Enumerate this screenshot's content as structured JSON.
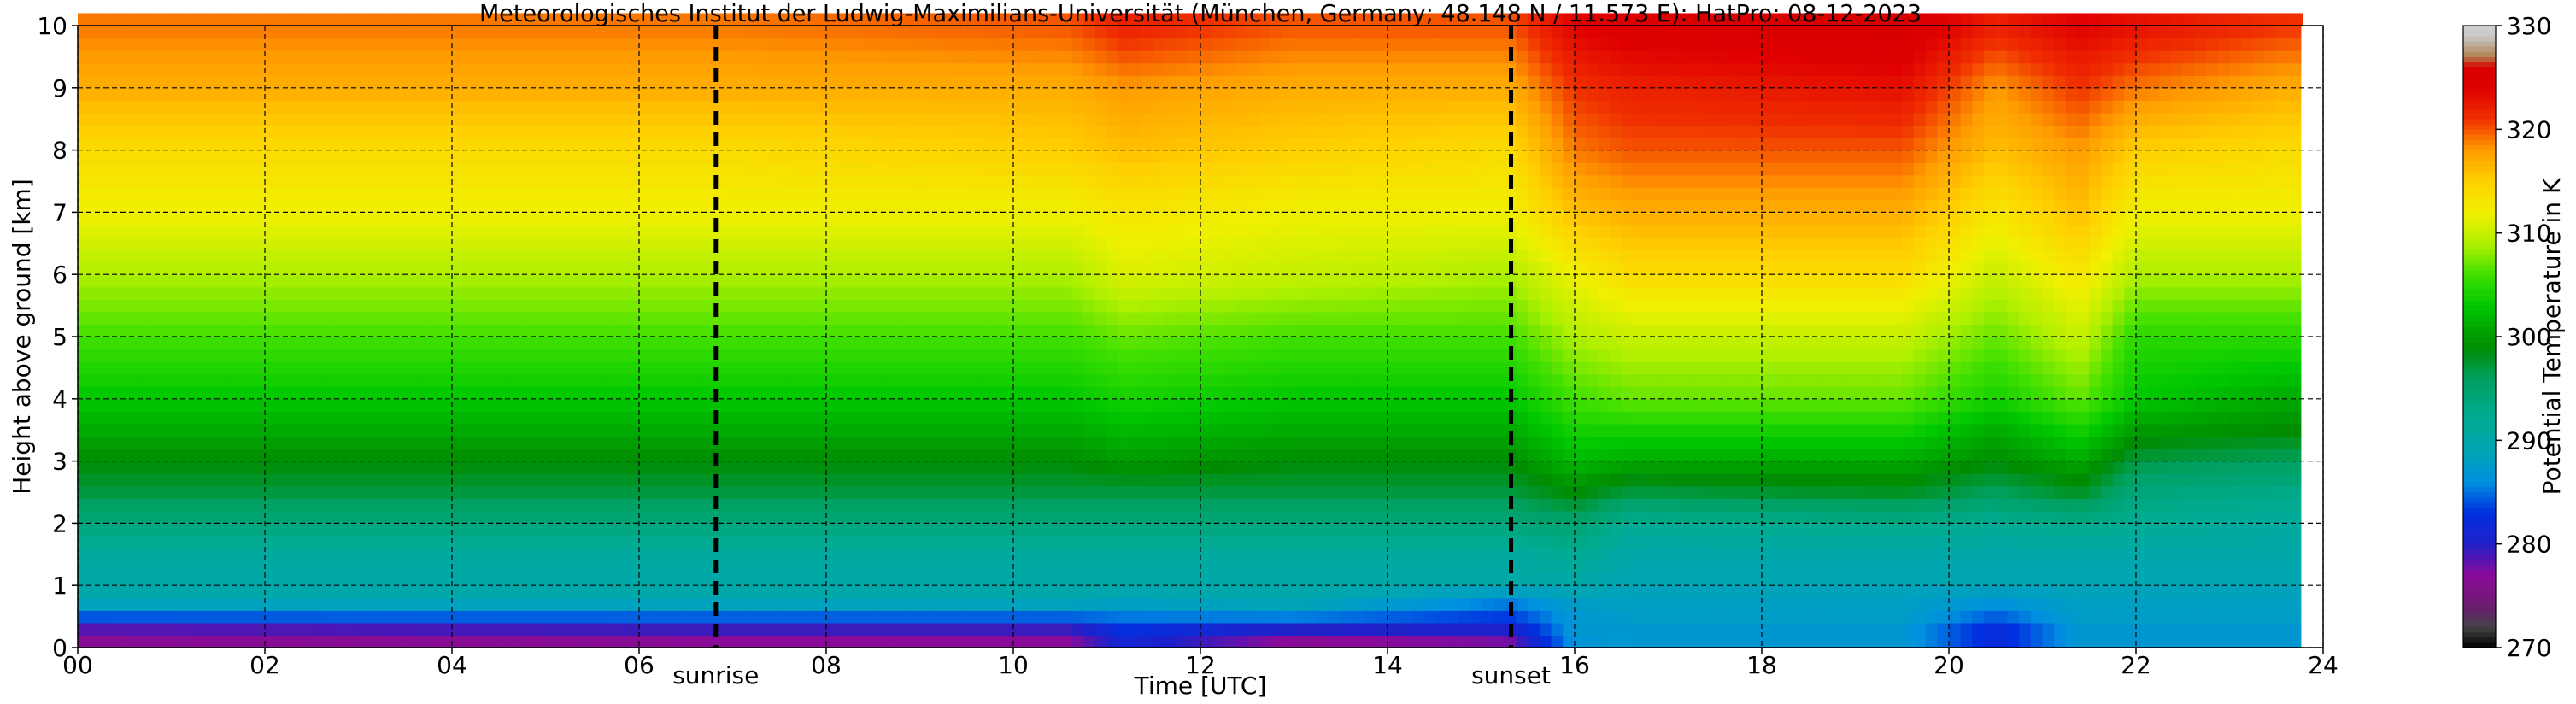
{
  "chart_data": {
    "type": "heatmap",
    "title": "Meteorologisches Institut der Ludwig-Maximilians-Universität (München, Germany; 48.148 N / 11.573 E):    HatPro: 08-12-2023",
    "xlabel": "Time [UTC]",
    "ylabel": "Height above ground [km]",
    "xlim": [
      0,
      24
    ],
    "ylim": [
      0,
      10
    ],
    "x_ticks": [
      0,
      2,
      4,
      6,
      8,
      10,
      12,
      14,
      16,
      18,
      20,
      22,
      24
    ],
    "x_tick_labels": [
      "00",
      "02",
      "04",
      "06",
      "08",
      "10",
      "12",
      "14",
      "16",
      "18",
      "20",
      "22",
      "24"
    ],
    "y_ticks": [
      0,
      1,
      2,
      3,
      4,
      5,
      6,
      7,
      8,
      9,
      10
    ],
    "y_tick_labels": [
      "0",
      "1",
      "2",
      "3",
      "4",
      "5",
      "6",
      "7",
      "8",
      "9",
      "10"
    ],
    "grid": true,
    "colorbar": {
      "label": "Potential Temperature in K",
      "min": 270,
      "max": 330,
      "ticks": [
        270,
        280,
        290,
        300,
        310,
        320,
        330
      ],
      "tick_labels": [
        "270",
        "280",
        "290",
        "300",
        "310",
        "320",
        "330"
      ]
    },
    "colormap": [
      {
        "value": 270,
        "color": "#000000"
      },
      {
        "value": 272,
        "color": "#444444"
      },
      {
        "value": 274,
        "color": "#6b1c70"
      },
      {
        "value": 277,
        "color": "#8c0a99"
      },
      {
        "value": 280,
        "color": "#2020c8"
      },
      {
        "value": 283,
        "color": "#0030e0"
      },
      {
        "value": 286,
        "color": "#0090e0"
      },
      {
        "value": 289,
        "color": "#00a6b4"
      },
      {
        "value": 292,
        "color": "#00ac94"
      },
      {
        "value": 296,
        "color": "#00a060"
      },
      {
        "value": 299,
        "color": "#008c00"
      },
      {
        "value": 303,
        "color": "#00c800"
      },
      {
        "value": 306,
        "color": "#40e000"
      },
      {
        "value": 309,
        "color": "#b0f000"
      },
      {
        "value": 312,
        "color": "#f0f000"
      },
      {
        "value": 315,
        "color": "#ffd000"
      },
      {
        "value": 318,
        "color": "#ff9c00"
      },
      {
        "value": 321,
        "color": "#f03000"
      },
      {
        "value": 324,
        "color": "#e00000"
      },
      {
        "value": 326,
        "color": "#d80000"
      },
      {
        "value": 327,
        "color": "#b08050"
      },
      {
        "value": 329,
        "color": "#c8c8c8"
      },
      {
        "value": 330,
        "color": "#d0d0d0"
      }
    ],
    "height_levels_km": [
      0,
      0.15,
      0.35,
      0.55,
      0.8,
      1.0,
      1.5,
      2.0,
      2.5,
      3.0,
      3.5,
      4.0,
      5.0,
      6.0,
      7.0,
      8.0,
      9.0,
      10.0
    ],
    "profile_times_utc": [
      0,
      6.0,
      6.9,
      10.6,
      11.2,
      13.0,
      15.3,
      16.0,
      16.6,
      19.5,
      20.5,
      21.4,
      22.0,
      23.6
    ],
    "theta_profiles_K": [
      [
        276,
        277,
        279,
        286,
        290,
        290,
        291,
        294,
        297,
        299,
        301,
        303,
        306,
        309,
        312,
        314,
        317,
        319
      ],
      [
        276,
        277,
        280,
        286,
        290,
        290,
        291,
        294,
        297,
        299,
        301,
        303,
        306,
        309,
        312,
        314,
        317,
        319
      ],
      [
        277,
        277,
        280,
        286,
        290,
        290,
        291,
        294,
        297,
        299,
        301,
        303,
        306,
        309,
        312,
        314,
        317,
        319
      ],
      [
        277,
        277,
        280,
        286,
        290,
        290,
        291,
        294,
        297,
        299,
        301,
        303,
        306,
        309,
        312,
        315,
        317,
        320
      ],
      [
        280,
        282,
        283,
        286,
        289,
        290,
        291,
        294,
        297,
        300,
        302,
        304,
        307,
        311,
        313,
        316,
        318,
        322
      ],
      [
        276,
        277,
        281,
        287,
        290,
        290,
        291,
        294,
        297,
        299,
        301,
        303,
        306,
        310,
        312,
        315,
        317,
        320
      ],
      [
        277,
        278,
        281,
        284,
        286,
        290,
        291,
        294,
        297,
        299,
        301,
        303,
        306,
        309,
        312,
        314,
        317,
        320
      ],
      [
        286,
        287,
        287,
        287,
        288,
        290,
        292,
        295,
        299,
        302,
        304,
        306,
        309,
        312,
        316,
        319,
        321,
        324
      ],
      [
        287,
        287,
        287,
        288,
        288,
        289,
        290,
        292,
        297,
        301,
        304,
        307,
        310,
        314,
        317,
        320,
        322,
        325
      ],
      [
        287,
        287,
        287,
        288,
        288,
        289,
        290,
        293,
        298,
        301,
        304,
        307,
        310,
        314,
        317,
        320,
        323,
        326
      ],
      [
        282,
        282,
        282,
        285,
        287,
        289,
        290,
        292,
        296,
        299,
        301,
        304,
        307,
        310,
        313,
        316,
        318,
        322
      ],
      [
        287,
        287,
        287,
        288,
        288,
        289,
        290,
        293,
        298,
        301,
        304,
        307,
        310,
        313,
        316,
        318,
        321,
        324
      ],
      [
        287,
        287,
        287,
        288,
        288,
        289,
        290,
        292,
        294,
        297,
        300,
        303,
        305,
        309,
        312,
        315,
        319,
        323
      ],
      [
        287,
        287,
        287,
        288,
        288,
        289,
        290,
        291,
        293,
        296,
        299,
        301,
        305,
        309,
        312,
        314,
        317,
        321
      ]
    ],
    "data_end_time_utc": 23.78,
    "vertical_markers": [
      {
        "time_utc": 6.82,
        "label": "sunrise"
      },
      {
        "time_utc": 15.32,
        "label": "sunset"
      }
    ]
  }
}
